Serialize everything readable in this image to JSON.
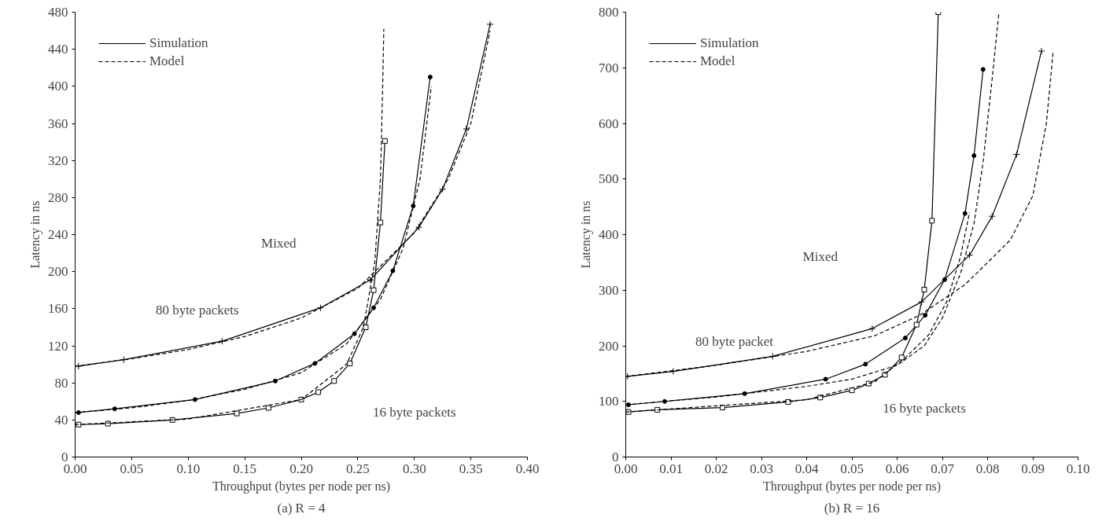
{
  "chart_data": [
    {
      "type": "line",
      "title": "(a) R = 4",
      "xlabel": "Throughput (bytes per node per ns)",
      "ylabel": "Latency in ns",
      "xlim": [
        0,
        0.4
      ],
      "ylim": [
        0,
        480
      ],
      "xticks": [
        {
          "value": 0,
          "label": "0.00"
        },
        {
          "value": 0.05,
          "label": "0.05"
        },
        {
          "value": 0.1,
          "label": "0.10"
        },
        {
          "value": 0.15,
          "label": "0.15"
        },
        {
          "value": 0.2,
          "label": "0.20"
        },
        {
          "value": 0.25,
          "label": "0.25"
        },
        {
          "value": 0.3,
          "label": "0.30"
        },
        {
          "value": 0.35,
          "label": "0.35"
        },
        {
          "value": 0.4,
          "label": "0.40"
        }
      ],
      "yticks": [
        0,
        40,
        80,
        120,
        160,
        200,
        240,
        280,
        320,
        360,
        400,
        440,
        480
      ],
      "grid": false,
      "legend": "top left",
      "annotations": [
        "80 byte packets",
        "Mixed",
        "16 byte packets"
      ],
      "series": [
        {
          "name": "Simulation",
          "color": "#000000",
          "line_style": "solid",
          "marker": "cross",
          "x": [
            0.003,
            0.043,
            0.13,
            0.217,
            0.261,
            0.304,
            0.325,
            0.346,
            0.367
          ],
          "values": [
            98,
            105,
            125,
            161,
            191,
            248,
            289,
            354,
            467
          ]
        },
        {
          "color": "#000000",
          "line_style": "solid",
          "marker": "circle",
          "x": [
            0.003,
            0.035,
            0.106,
            0.177,
            0.212,
            0.247,
            0.264,
            0.281,
            0.299,
            0.314
          ],
          "values": [
            48,
            52,
            62,
            82,
            101,
            133,
            161,
            201,
            271,
            410
          ]
        },
        {
          "color": "#000000",
          "line_style": "solid",
          "marker": "square",
          "x": [
            0.003,
            0.029,
            0.086,
            0.143,
            0.171,
            0.2,
            0.215,
            0.229,
            0.243,
            0.257,
            0.264,
            0.27,
            0.274
          ],
          "values": [
            35,
            36,
            40,
            47,
            53,
            62,
            70,
            82,
            101,
            140,
            180,
            253,
            341
          ]
        },
        {
          "name": "Model",
          "color": "#000000",
          "line_style": "dashed",
          "marker": "none",
          "x": [
            0,
            0.05,
            0.1,
            0.15,
            0.2,
            0.25,
            0.3,
            0.33,
            0.35,
            0.367
          ],
          "values": [
            98,
            106,
            116,
            130,
            150,
            182,
            242,
            300,
            360,
            460
          ]
        },
        {
          "color": "#000000",
          "line_style": "dashed",
          "marker": "none",
          "x": [
            0,
            0.05,
            0.1,
            0.15,
            0.2,
            0.24,
            0.27,
            0.29,
            0.305,
            0.315
          ],
          "values": [
            48,
            53,
            61,
            73,
            91,
            122,
            170,
            225,
            300,
            400
          ]
        },
        {
          "color": "#000000",
          "line_style": "dashed",
          "marker": "none",
          "x": [
            0,
            0.1,
            0.2,
            0.24,
            0.255,
            0.265,
            0.27,
            0.272,
            0.273
          ],
          "values": [
            35,
            41,
            62,
            100,
            140,
            210,
            300,
            400,
            462
          ]
        }
      ]
    },
    {
      "type": "line",
      "title": "(b) R = 16",
      "xlabel": "Throughput (bytes per node per ns)",
      "ylabel": "Latency in ns",
      "xlim": [
        0,
        0.1
      ],
      "ylim": [
        0,
        800
      ],
      "xticks": [
        {
          "value": 0,
          "label": "0.00"
        },
        {
          "value": 0.01,
          "label": "0.01"
        },
        {
          "value": 0.02,
          "label": "0.02"
        },
        {
          "value": 0.03,
          "label": "0.03"
        },
        {
          "value": 0.04,
          "label": "0.04"
        },
        {
          "value": 0.05,
          "label": "0.05"
        },
        {
          "value": 0.06,
          "label": "0.06"
        },
        {
          "value": 0.07,
          "label": "0.07"
        },
        {
          "value": 0.08,
          "label": "0.08"
        },
        {
          "value": 0.09,
          "label": "0.09"
        },
        {
          "value": 0.1,
          "label": "0.10"
        }
      ],
      "yticks": [
        0,
        100,
        200,
        300,
        400,
        500,
        600,
        700,
        800
      ],
      "grid": false,
      "legend": "top left",
      "annotations": [
        "80 byte packet",
        "Mixed",
        "16 byte packets"
      ],
      "series": [
        {
          "name": "Simulation",
          "color": "#000000",
          "line_style": "solid",
          "marker": "cross",
          "x": [
            0.0004,
            0.0105,
            0.0325,
            0.0545,
            0.0654,
            0.076,
            0.081,
            0.0864,
            0.0919
          ],
          "values": [
            145,
            154,
            181,
            231,
            279,
            363,
            433,
            544,
            730
          ]
        },
        {
          "color": "#000000",
          "line_style": "solid",
          "marker": "circle",
          "x": [
            0.0006,
            0.0086,
            0.0263,
            0.0442,
            0.053,
            0.0618,
            0.0662,
            0.0705,
            0.075,
            0.077,
            0.079
          ],
          "values": [
            94,
            100,
            114,
            140,
            167,
            214,
            255,
            319,
            438,
            542,
            697
          ]
        },
        {
          "color": "#000000",
          "line_style": "solid",
          "marker": "square",
          "x": [
            0.0006,
            0.007,
            0.0214,
            0.0359,
            0.043,
            0.05,
            0.0537,
            0.0573,
            0.061,
            0.0643,
            0.066,
            0.0677,
            0.0691
          ],
          "values": [
            81,
            85,
            89,
            99,
            107,
            120,
            132,
            148,
            179,
            238,
            301,
            425,
            800
          ]
        },
        {
          "name": "Model",
          "color": "#000000",
          "line_style": "dashed",
          "marker": "none",
          "x": [
            0,
            0.02,
            0.04,
            0.055,
            0.065,
            0.075,
            0.085,
            0.09,
            0.093,
            0.0945
          ],
          "values": [
            145,
            165,
            190,
            218,
            255,
            310,
            390,
            470,
            600,
            730
          ]
        },
        {
          "color": "#000000",
          "line_style": "dashed",
          "marker": "none",
          "x": [
            0,
            0.02,
            0.04,
            0.05,
            0.06,
            0.066,
            0.07,
            0.074,
            0.077,
            0.079,
            0.081,
            0.0825
          ],
          "values": [
            94,
            108,
            127,
            140,
            165,
            200,
            250,
            330,
            420,
            530,
            680,
            800
          ]
        },
        {
          "color": "#000000",
          "line_style": "dashed",
          "marker": "none",
          "x": [
            0,
            0.04,
            0.055,
            0.062,
            0.067,
            0.071,
            0.074,
            0.076
          ],
          "values": [
            81,
            103,
            135,
            180,
            220,
            280,
            360,
            440
          ]
        }
      ]
    }
  ]
}
